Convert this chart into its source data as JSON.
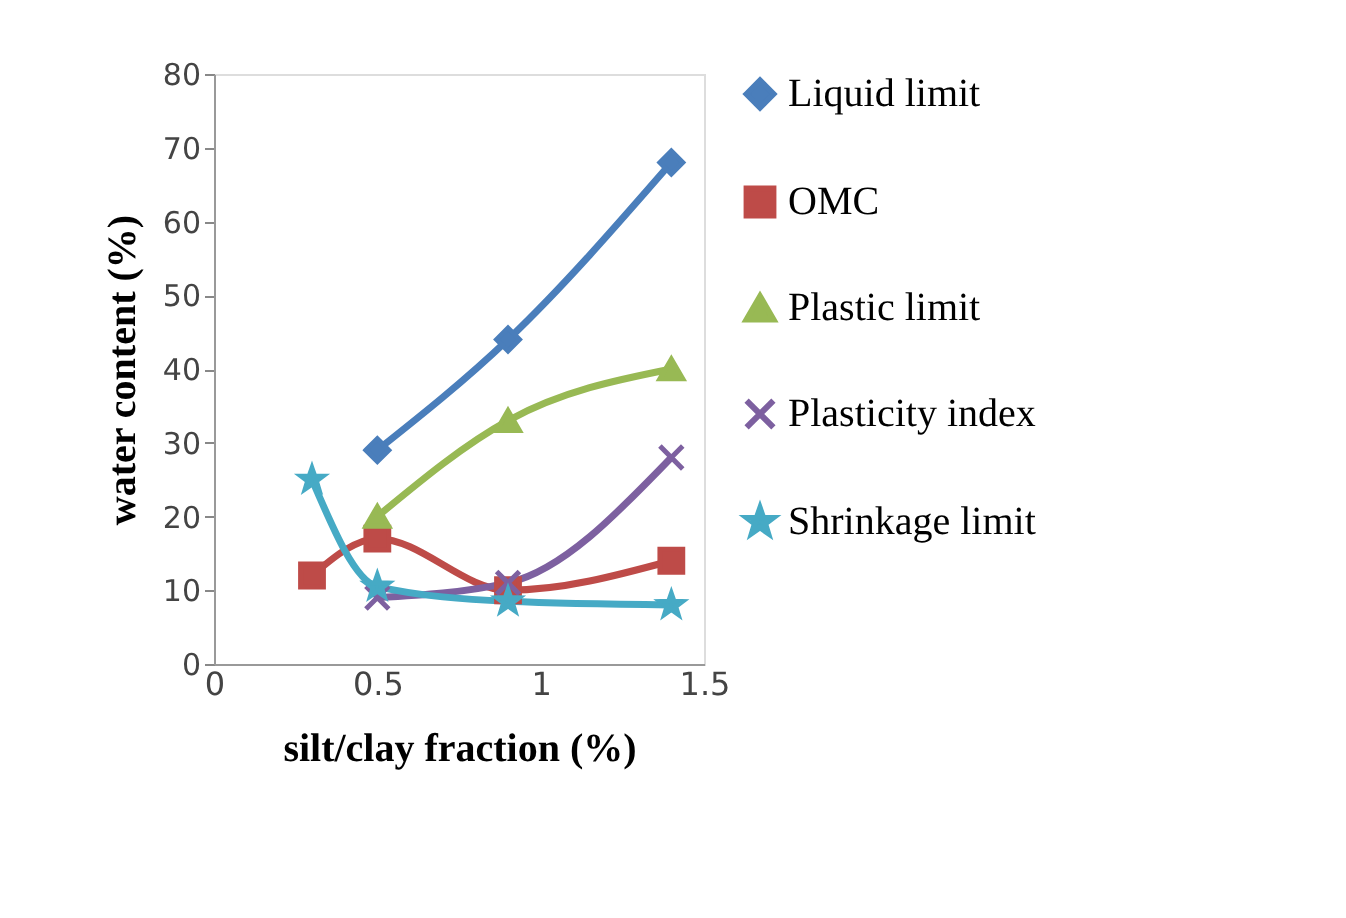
{
  "chart_data": {
    "type": "line",
    "xlabel": "silt/clay fraction (%)",
    "ylabel": "water content (%)",
    "xlim": [
      0,
      1.5
    ],
    "xticks": [
      0,
      0.5,
      1,
      1.5
    ],
    "ylim": [
      0,
      80
    ],
    "yticks": [
      0,
      10,
      20,
      30,
      40,
      50,
      60,
      70,
      80
    ],
    "grid": false,
    "legend": "right",
    "line_style": "solid",
    "series": [
      {
        "name": "Liquid limit",
        "color": "#4a7ebb",
        "marker": "diamond",
        "x": [
          0.5,
          0.9,
          1.4
        ],
        "values": [
          29,
          44,
          68
        ]
      },
      {
        "name": "OMC",
        "color": "#be4b48",
        "marker": "square",
        "x": [
          0.3,
          0.5,
          0.9,
          1.4
        ],
        "values": [
          12,
          17,
          10,
          14
        ]
      },
      {
        "name": "Plastic limit",
        "color": "#98b954",
        "marker": "triangle",
        "x": [
          0.5,
          0.9,
          1.4
        ],
        "values": [
          20,
          33,
          40
        ]
      },
      {
        "name": "Plasticity index",
        "color": "#7d60a0",
        "marker": "cross",
        "x": [
          0.5,
          0.9,
          1.4
        ],
        "values": [
          9,
          11,
          28
        ]
      },
      {
        "name": "Shrinkage limit",
        "color": "#46aac5",
        "marker": "star",
        "x": [
          0.3,
          0.5,
          0.9,
          1.4
        ],
        "values": [
          25,
          10.5,
          8.5,
          8
        ]
      }
    ]
  }
}
